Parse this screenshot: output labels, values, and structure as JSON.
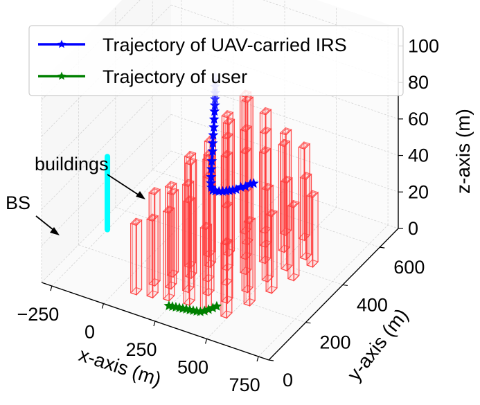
{
  "chart_data": {
    "type": "scatter",
    "projection": "3d",
    "xlabel": "x-axis (m)",
    "ylabel": "y-axis (m)",
    "zlabel": "z-axis (m)",
    "x_ticks": [
      "−250",
      "0",
      "250",
      "500",
      "750"
    ],
    "y_ticks": [
      "0",
      "200",
      "400",
      "600"
    ],
    "z_ticks": [
      "0",
      "20",
      "40",
      "60",
      "80",
      "100"
    ],
    "xlim": [
      -300,
      800
    ],
    "ylim": [
      0,
      700
    ],
    "zlim": [
      0,
      110
    ],
    "legend_position": "top-left",
    "series": [
      {
        "name": "Trajectory of UAV-carried IRS",
        "color": "#0000ff",
        "marker": "star",
        "x": [
          245,
          247,
          249,
          252,
          254,
          256,
          257,
          258,
          259,
          259,
          260,
          262,
          262,
          263,
          264,
          266,
          270,
          278,
          290,
          305,
          318,
          330,
          340,
          350,
          360,
          375,
          390,
          405,
          415
        ],
        "y": [
          330,
          328,
          325,
          322,
          319,
          316,
          313,
          310,
          307,
          304,
          300,
          297,
          293,
          290,
          287,
          284,
          282,
          280,
          281,
          284,
          289,
          295,
          301,
          308,
          315,
          323,
          332,
          341,
          348
        ],
        "z": [
          100,
          98,
          95,
          92,
          89,
          86,
          83,
          79,
          75,
          71,
          67,
          63,
          58,
          54,
          50,
          47,
          45,
          44,
          44,
          44,
          44,
          44,
          44,
          44,
          44,
          45,
          45,
          46,
          46
        ]
      },
      {
        "name": "Trajectory of user",
        "color": "#008000",
        "marker": "star",
        "x": [
          245,
          260,
          275,
          290,
          305,
          320,
          335,
          350,
          365,
          380,
          392,
          402,
          412,
          420
        ],
        "y": [
          80,
          82,
          84,
          86,
          88,
          90,
          92,
          94,
          96,
          99,
          108,
          119,
          131,
          143
        ],
        "z": [
          0,
          0,
          0,
          0,
          0,
          0,
          0,
          0,
          0,
          0,
          0,
          0,
          0,
          0
        ]
      },
      {
        "name": "",
        "color": "#00ffff",
        "x": [
          -250,
          -250
        ],
        "y": [
          300,
          300
        ],
        "z": [
          0,
          40
        ]
      }
    ],
    "buildings": [
      {
        "x": 60,
        "y": 80,
        "w": 28,
        "d": 28,
        "h": 38
      },
      {
        "x": 95,
        "y": 140,
        "w": 28,
        "d": 28,
        "h": 50
      },
      {
        "x": 130,
        "y": 200,
        "w": 28,
        "d": 28,
        "h": 45
      },
      {
        "x": 160,
        "y": 260,
        "w": 28,
        "d": 28,
        "h": 60
      },
      {
        "x": 190,
        "y": 330,
        "w": 28,
        "d": 28,
        "h": 55
      },
      {
        "x": 215,
        "y": 400,
        "w": 28,
        "d": 28,
        "h": 70
      },
      {
        "x": 240,
        "y": 470,
        "w": 28,
        "d": 28,
        "h": 75
      },
      {
        "x": 130,
        "y": 90,
        "w": 28,
        "d": 28,
        "h": 42
      },
      {
        "x": 165,
        "y": 150,
        "w": 28,
        "d": 28,
        "h": 55
      },
      {
        "x": 200,
        "y": 220,
        "w": 28,
        "d": 28,
        "h": 62
      },
      {
        "x": 230,
        "y": 290,
        "w": 28,
        "d": 28,
        "h": 68
      },
      {
        "x": 258,
        "y": 360,
        "w": 28,
        "d": 28,
        "h": 72
      },
      {
        "x": 285,
        "y": 430,
        "w": 28,
        "d": 28,
        "h": 78
      },
      {
        "x": 310,
        "y": 500,
        "w": 28,
        "d": 28,
        "h": 65
      },
      {
        "x": 200,
        "y": 100,
        "w": 28,
        "d": 28,
        "h": 48
      },
      {
        "x": 240,
        "y": 160,
        "w": 28,
        "d": 28,
        "h": 58
      },
      {
        "x": 275,
        "y": 230,
        "w": 28,
        "d": 28,
        "h": 66
      },
      {
        "x": 305,
        "y": 300,
        "w": 28,
        "d": 28,
        "h": 72
      },
      {
        "x": 332,
        "y": 370,
        "w": 28,
        "d": 28,
        "h": 70
      },
      {
        "x": 360,
        "y": 445,
        "w": 28,
        "d": 28,
        "h": 62
      },
      {
        "x": 390,
        "y": 520,
        "w": 28,
        "d": 28,
        "h": 55
      },
      {
        "x": 290,
        "y": 110,
        "w": 28,
        "d": 28,
        "h": 56
      },
      {
        "x": 325,
        "y": 175,
        "w": 28,
        "d": 28,
        "h": 64
      },
      {
        "x": 355,
        "y": 240,
        "w": 28,
        "d": 28,
        "h": 70
      },
      {
        "x": 385,
        "y": 310,
        "w": 28,
        "d": 28,
        "h": 66
      },
      {
        "x": 415,
        "y": 380,
        "w": 28,
        "d": 28,
        "h": 60
      },
      {
        "x": 445,
        "y": 450,
        "w": 28,
        "d": 28,
        "h": 58
      },
      {
        "x": 475,
        "y": 525,
        "w": 28,
        "d": 28,
        "h": 50
      },
      {
        "x": 380,
        "y": 100,
        "w": 28,
        "d": 28,
        "h": 46
      },
      {
        "x": 420,
        "y": 170,
        "w": 28,
        "d": 28,
        "h": 52
      },
      {
        "x": 455,
        "y": 240,
        "w": 28,
        "d": 28,
        "h": 55
      },
      {
        "x": 490,
        "y": 310,
        "w": 28,
        "d": 28,
        "h": 50
      },
      {
        "x": 520,
        "y": 380,
        "w": 28,
        "d": 28,
        "h": 48
      },
      {
        "x": 550,
        "y": 450,
        "w": 28,
        "d": 28,
        "h": 44
      },
      {
        "x": 470,
        "y": 110,
        "w": 28,
        "d": 28,
        "h": 40
      },
      {
        "x": 510,
        "y": 190,
        "w": 28,
        "d": 28,
        "h": 45
      },
      {
        "x": 545,
        "y": 270,
        "w": 28,
        "d": 28,
        "h": 42
      },
      {
        "x": 580,
        "y": 350,
        "w": 28,
        "d": 28,
        "h": 40
      },
      {
        "x": 600,
        "y": 430,
        "w": 28,
        "d": 28,
        "h": 38
      }
    ],
    "annotations": [
      {
        "text": "buildings",
        "x": -120,
        "y": 560,
        "z": 60
      },
      {
        "text": "BS",
        "x": -290,
        "y": 300,
        "z": 65
      }
    ],
    "grid": true
  }
}
